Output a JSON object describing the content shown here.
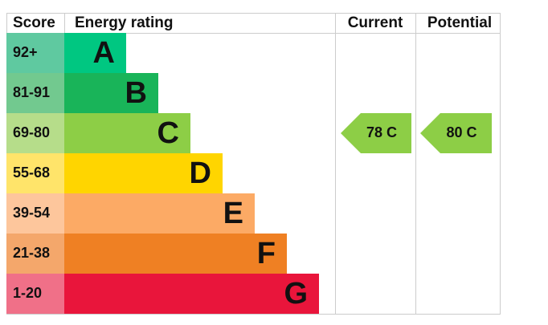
{
  "header": {
    "score": "Score",
    "rating": "Energy rating",
    "current": "Current",
    "potential": "Potential"
  },
  "rows": [
    {
      "score": "92+",
      "band": "A",
      "color": "#00c781",
      "score_color": "#5fc9a0"
    },
    {
      "score": "81-91",
      "band": "B",
      "color": "#19b459",
      "score_color": "#72c98f"
    },
    {
      "score": "69-80",
      "band": "C",
      "color": "#8dce46",
      "score_color": "#b6dd8a"
    },
    {
      "score": "55-68",
      "band": "D",
      "color": "#ffd500",
      "score_color": "#ffe46a"
    },
    {
      "score": "39-54",
      "band": "E",
      "color": "#fcaa65",
      "score_color": "#fdc69c"
    },
    {
      "score": "21-38",
      "band": "F",
      "color": "#ef8023",
      "score_color": "#f4a76b"
    },
    {
      "score": "1-20",
      "band": "G",
      "color": "#e9153b",
      "score_color": "#f07088"
    }
  ],
  "current": {
    "label": "78 C",
    "row": 2,
    "color": "#8dce46"
  },
  "potential": {
    "label": "80 C",
    "row": 2,
    "color": "#8dce46"
  }
}
